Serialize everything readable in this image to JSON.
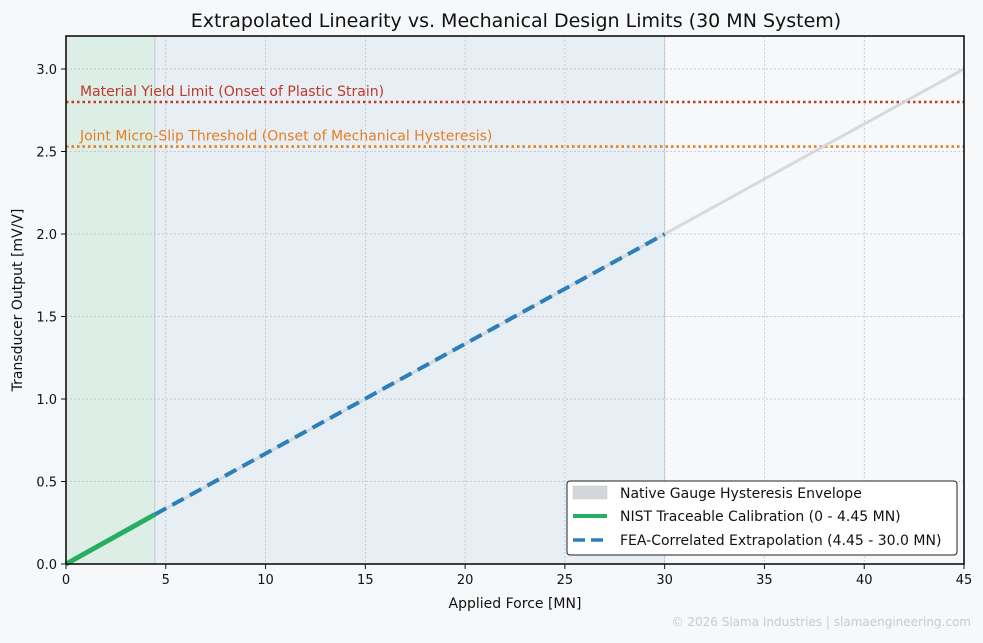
{
  "chart_data": {
    "type": "line",
    "title": "Extrapolated Linearity vs. Mechanical Design Limits (30 MN System)",
    "xlabel": "Applied Force [MN]",
    "ylabel": "Transducer Output [mV/V]",
    "xlim": [
      0,
      45
    ],
    "ylim": [
      0,
      3.2
    ],
    "xticks": [
      {
        "value": 0,
        "label": "0"
      },
      {
        "value": 5,
        "label": "5"
      },
      {
        "value": 10,
        "label": "10"
      },
      {
        "value": 15,
        "label": "15"
      },
      {
        "value": 20,
        "label": "20"
      },
      {
        "value": 25,
        "label": "25"
      },
      {
        "value": 30,
        "label": "30"
      },
      {
        "value": 35,
        "label": "35"
      },
      {
        "value": 40,
        "label": "40"
      },
      {
        "value": 45,
        "label": "45"
      }
    ],
    "yticks": [
      {
        "value": 0,
        "label": "0.0"
      },
      {
        "value": 0.5,
        "label": "0.5"
      },
      {
        "value": 1,
        "label": "1.0"
      },
      {
        "value": 1.5,
        "label": "1.5"
      },
      {
        "value": 2,
        "label": "2.0"
      },
      {
        "value": 2.5,
        "label": "2.5"
      },
      {
        "value": 3,
        "label": "3.0"
      }
    ],
    "grid": true,
    "legend_position": "bottom-right",
    "regions": [
      {
        "x": [
          0,
          4.45
        ],
        "color": "#27ae60"
      },
      {
        "x": [
          4.45,
          30
        ],
        "color": "#2c7fb8"
      }
    ],
    "series": [
      {
        "name": "Native Gauge Hysteresis Envelope",
        "style": "band",
        "color": "#d3d6da",
        "points": [
          [
            0,
            0
          ],
          [
            45,
            3.0
          ]
        ]
      },
      {
        "name": "NIST Traceable Calibration (0 - 4.45 MN)",
        "style": "solid",
        "color": "#27ae60",
        "points": [
          [
            0,
            0
          ],
          [
            4.45,
            0.3
          ]
        ]
      },
      {
        "name": "FEA-Correlated Extrapolation (4.45 - 30.0 MN)",
        "style": "dashed",
        "color": "#2c7fb8",
        "points": [
          [
            4.45,
            0.3
          ],
          [
            30,
            2.0
          ]
        ]
      }
    ],
    "thresholds": [
      {
        "y": 2.8,
        "label": "Material Yield Limit (Onset of Plastic Strain)",
        "color": "#c0392b"
      },
      {
        "y": 2.53,
        "label": "Joint Micro-Slip Threshold (Onset of Mechanical Hysteresis)",
        "color": "#e67e22"
      }
    ],
    "footer": "© 2026 Slama Industries | slamaengineering.com"
  }
}
